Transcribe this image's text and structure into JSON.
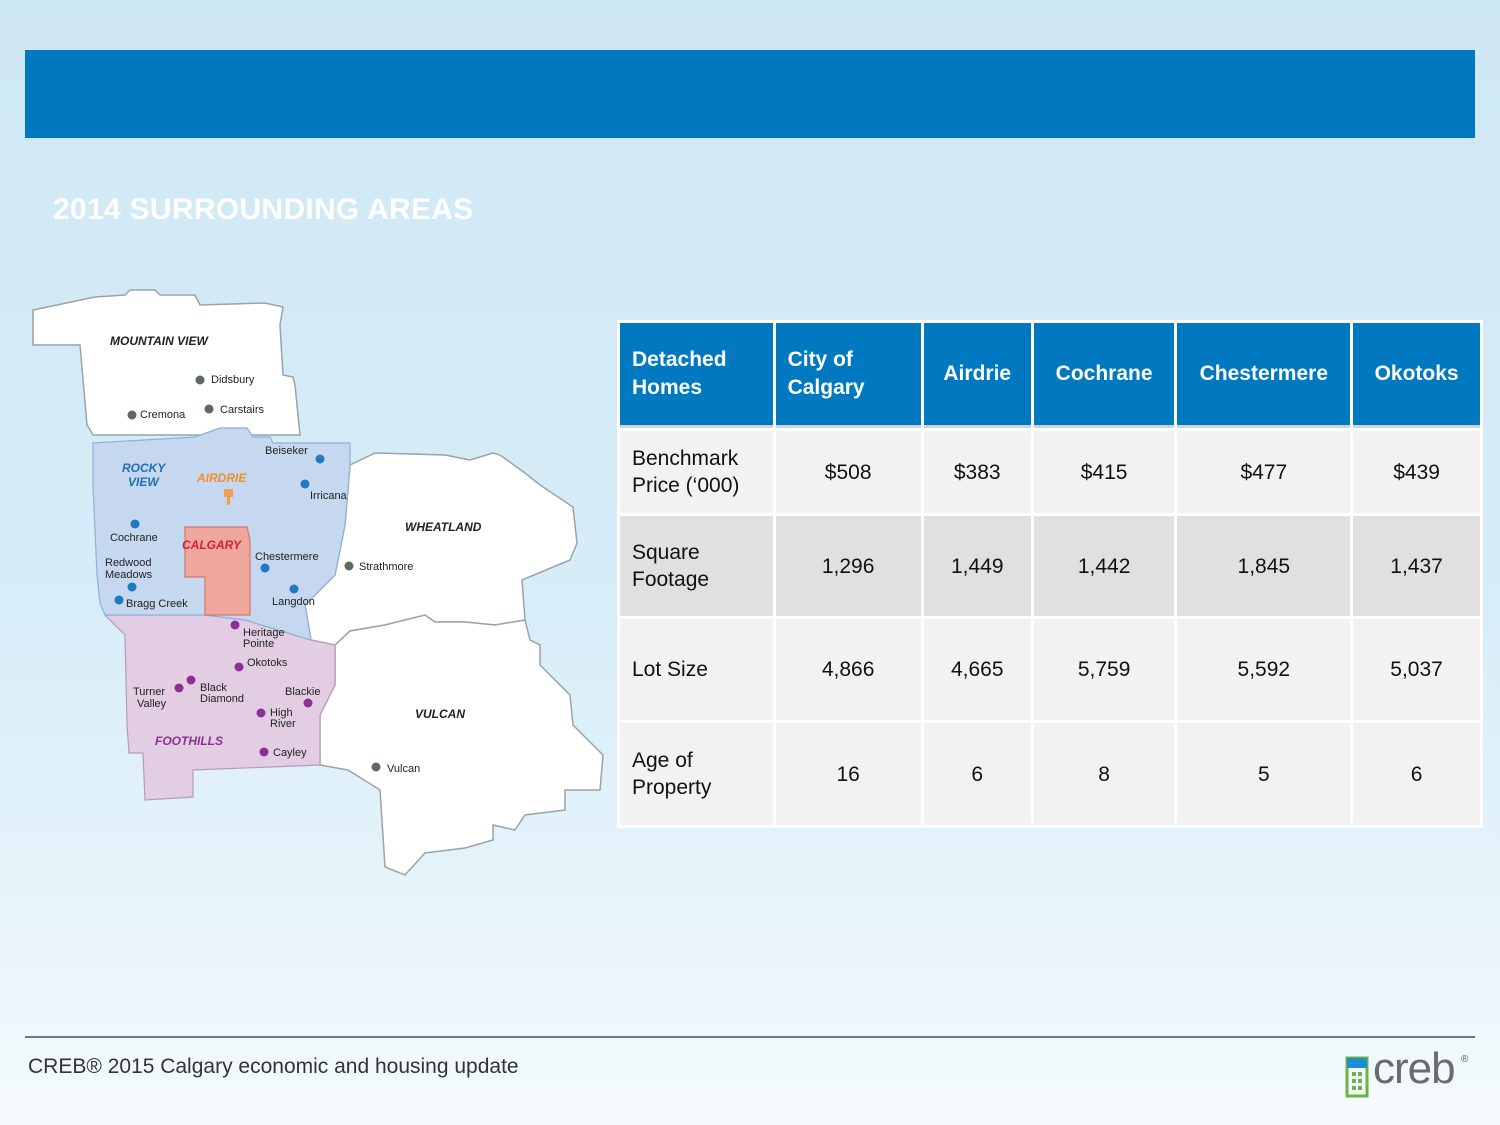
{
  "title": "2014 SURROUNDING AREAS",
  "map": {
    "regions": {
      "mountain_view": "MOUNTAIN VIEW",
      "rocky_view_1": "ROCKY",
      "rocky_view_2": "VIEW",
      "airdrie": "AIRDRIE",
      "calgary": "CALGARY",
      "wheatland": "WHEATLAND",
      "vulcan": "VULCAN",
      "foothills": "FOOTHILLS"
    },
    "towns": {
      "didsbury": "Didsbury",
      "cremona": "Cremona",
      "carstairs": "Carstairs",
      "beiseker": "Beiseker",
      "irricana": "Irricana",
      "cochrane": "Cochrane",
      "redwood_1": "Redwood",
      "redwood_2": "Meadows",
      "bragg_creek": "Bragg Creek",
      "chestermere": "Chestermere",
      "langdon": "Langdon",
      "strathmore": "Strathmore",
      "heritage_1": "Heritage",
      "heritage_2": "Pointe",
      "okotoks": "Okotoks",
      "turner_1": "Turner",
      "turner_2": "Valley",
      "black_1": "Black",
      "black_2": "Diamond",
      "blackie": "Blackie",
      "high_1": "High",
      "high_2": "River",
      "cayley": "Cayley",
      "vulcan": "Vulcan"
    },
    "colors": {
      "rocky_view": "#c5d8ef",
      "foothills": "#e2cde3",
      "calgary": "#eea69d",
      "airdrie_label": "#f0902a",
      "calgary_label": "#d2203a",
      "rocky_label": "#1f6fb8",
      "foothills_label": "#8d2f95",
      "dot_grey": "#5b6b62",
      "dot_blue": "#1f7ac2",
      "dot_purple": "#8e2f96"
    }
  },
  "table": {
    "headers": [
      "Detached Homes",
      "City of Calgary",
      "Airdrie",
      "Cochrane",
      "Chestermere",
      "Okotoks"
    ],
    "rows": [
      {
        "label": "Benchmark Price (‘000)",
        "values": [
          "$508",
          "$383",
          "$415",
          "$477",
          "$439"
        ]
      },
      {
        "label": "Square Footage",
        "values": [
          "1,296",
          "1,449",
          "1,442",
          "1,845",
          "1,437"
        ]
      },
      {
        "label": "Lot Size",
        "values": [
          "4,866",
          "4,665",
          "5,759",
          "5,592",
          "5,037"
        ]
      },
      {
        "label": "Age of Property",
        "values": [
          "16",
          "6",
          "8",
          "5",
          "6"
        ]
      }
    ]
  },
  "footer": {
    "text": "CREB® 2015 Calgary economic and housing update",
    "logo_text": "creb",
    "logo_mark": "®"
  },
  "colors": {
    "banner": "#0079c1",
    "header_cell": "#0079c1"
  }
}
